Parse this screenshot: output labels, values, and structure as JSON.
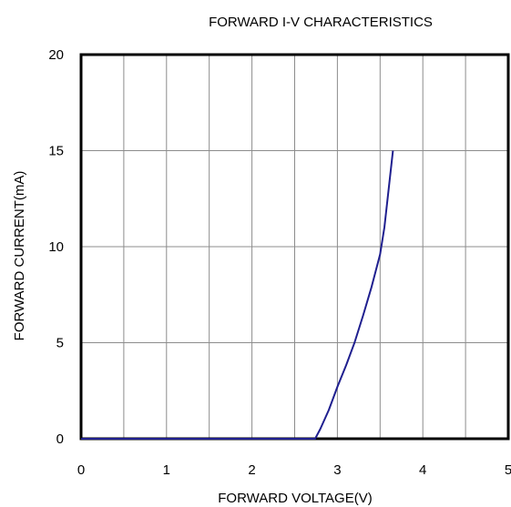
{
  "chart_data": {
    "type": "line",
    "title": "FORWARD I-V CHARACTERISTICS",
    "xlabel": "FORWARD VOLTAGE(V)",
    "ylabel": "FORWARD CURRENT(mA)",
    "xlim": [
      0,
      5
    ],
    "ylim": [
      0,
      20
    ],
    "x_ticks": [
      "0",
      "1",
      "2",
      "3",
      "4",
      "5"
    ],
    "y_ticks": [
      "0",
      "5",
      "10",
      "15",
      "20"
    ],
    "x_minor_grid": [
      0.5,
      1.5,
      2.5,
      3.5,
      4.5
    ],
    "y_grid": [
      5,
      10,
      15
    ],
    "grid": true,
    "series": [
      {
        "color": "#1f1f8f",
        "x": [
          0,
          1,
          2,
          2.5,
          2.74,
          2.8,
          2.9,
          3.0,
          3.1,
          3.2,
          3.3,
          3.4,
          3.5,
          3.55,
          3.6,
          3.65
        ],
        "y": [
          0,
          0,
          0,
          0,
          0,
          0.5,
          1.5,
          2.7,
          3.8,
          5.0,
          6.4,
          7.9,
          9.6,
          11.0,
          13.0,
          15.0
        ]
      }
    ]
  }
}
